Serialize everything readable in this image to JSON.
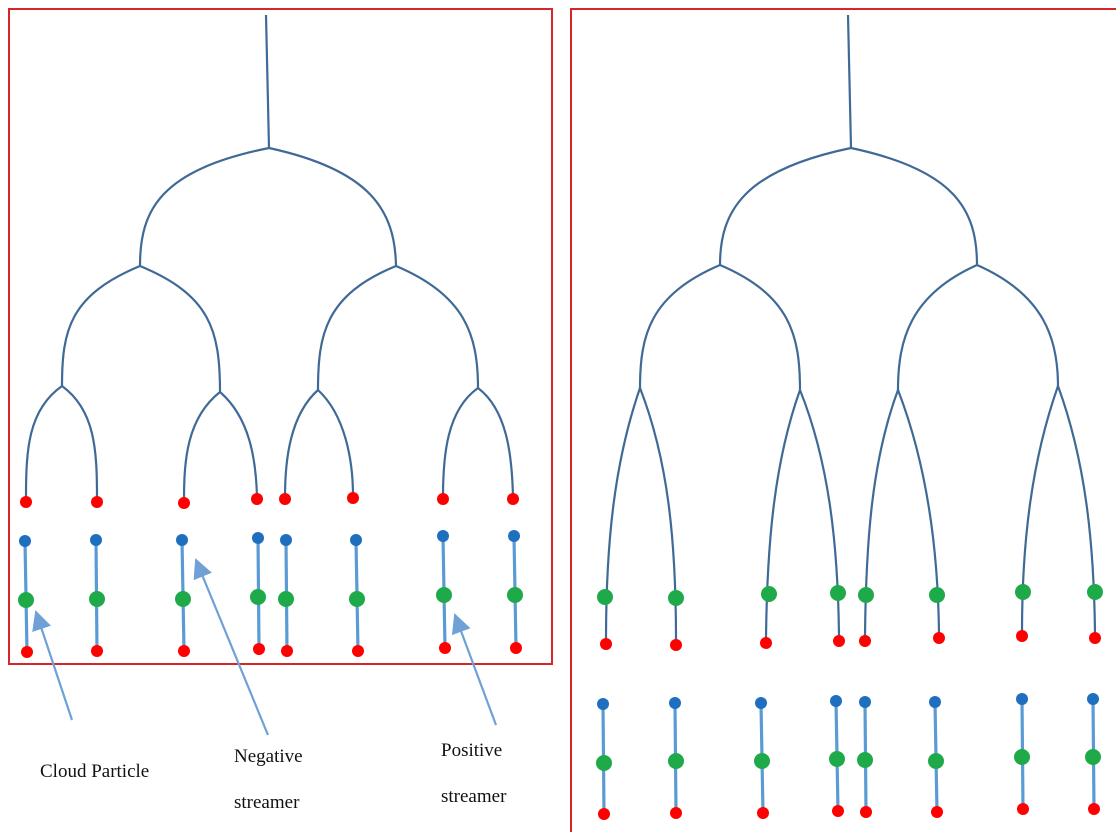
{
  "colors": {
    "frame": "#d62728",
    "leader": "#3f6a95",
    "streamer": "#5b9bd5",
    "negative_end": "#1f6fbf",
    "positive_end": "#ff0000",
    "cloud_particle": "#1faa4a",
    "arrow": "#6fa0d6"
  },
  "labels": {
    "cloud_particle": "Cloud Particle",
    "negative_line1": "Negative",
    "negative_line2": "streamer",
    "positive_line1": "Positive",
    "positive_line2": "streamer"
  },
  "left_panel": {
    "leader_branch_tips": 8,
    "streamer_pairs": 8
  },
  "right_panel": {
    "leader_branch_tips": 8,
    "streamer_pairs": 8
  }
}
